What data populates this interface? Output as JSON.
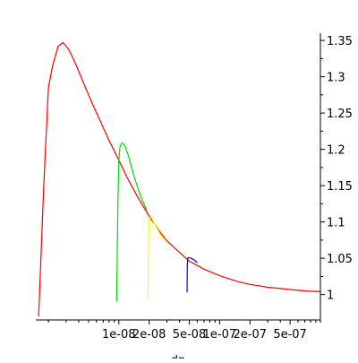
{
  "chart_data": {
    "type": "line",
    "title": "",
    "xlabel": "dp",
    "ylabel": "",
    "x_scale": "log",
    "xlim": [
      1.5e-09,
      1e-06
    ],
    "ylim": [
      0.965,
      1.36
    ],
    "grid": false,
    "legend": "none",
    "x_ticks": [
      {
        "value": 1e-08,
        "label": "1e-08"
      },
      {
        "value": 2e-08,
        "label": "2e-08"
      },
      {
        "value": 5e-08,
        "label": "5e-08"
      },
      {
        "value": 1e-07,
        "label": "1e-07"
      },
      {
        "value": 2e-07,
        "label": "2e-07"
      },
      {
        "value": 5e-07,
        "label": "5e-07"
      }
    ],
    "x_minor_ticks": [
      2e-09,
      3e-09,
      4e-09,
      5e-09,
      6e-09,
      7e-09,
      8e-09,
      9e-09,
      3e-08,
      4e-08,
      6e-08,
      7e-08,
      8e-08,
      9e-08,
      3e-07,
      4e-07,
      6e-07,
      7e-07,
      8e-07,
      9e-07,
      1e-06
    ],
    "y_ticks": [
      {
        "value": 1.0,
        "label": "1"
      },
      {
        "value": 1.05,
        "label": "1.05"
      },
      {
        "value": 1.1,
        "label": "1.1"
      },
      {
        "value": 1.15,
        "label": "1.15"
      },
      {
        "value": 1.2,
        "label": "1.2"
      },
      {
        "value": 1.25,
        "label": "1.25"
      },
      {
        "value": 1.3,
        "label": "1.3"
      },
      {
        "value": 1.35,
        "label": "1.35"
      }
    ],
    "series": [
      {
        "color": "#ff0000",
        "x": [
          1.6e-09,
          1.8e-09,
          2e-09,
          2.2e-09,
          2.5e-09,
          2.8e-09,
          3.2e-09,
          3.8e-09,
          4.5e-09,
          5.5e-09,
          6.5e-09,
          8e-09,
          1e-08,
          1.2e-08,
          1.5e-08,
          2e-08,
          2.5e-08,
          3e-08,
          4e-08,
          5e-08,
          7e-08,
          1e-07,
          1.5e-07,
          2e-07,
          3e-07,
          5e-07,
          7e-07,
          1e-06
        ],
        "y": [
          0.97,
          1.15,
          1.285,
          1.315,
          1.342,
          1.347,
          1.337,
          1.315,
          1.29,
          1.262,
          1.24,
          1.212,
          1.185,
          1.162,
          1.137,
          1.108,
          1.088,
          1.074,
          1.058,
          1.046,
          1.035,
          1.026,
          1.018,
          1.014,
          1.01,
          1.007,
          1.005,
          1.004
        ]
      },
      {
        "color": "#00dd00",
        "x": [
          9.5e-09,
          9.8e-09,
          1e-08,
          1.03e-08,
          1.08e-08,
          1.15e-08,
          1.25e-08,
          1.4e-08,
          1.6e-08,
          1.9e-08
        ],
        "y": [
          0.99,
          1.13,
          1.185,
          1.205,
          1.209,
          1.205,
          1.19,
          1.165,
          1.14,
          1.115
        ]
      },
      {
        "color": "#ffff00",
        "x": [
          1.95e-08,
          1.97e-08,
          2e-08,
          2.1e-08,
          2.3e-08,
          2.6e-08,
          3e-08
        ],
        "y": [
          0.995,
          1.07,
          1.105,
          1.107,
          1.095,
          1.082,
          1.072
        ]
      },
      {
        "color": "#0000ff",
        "x": [
          4.75e-08,
          4.78e-08,
          4.82e-08,
          5e-08,
          5.4e-08,
          6e-08
        ],
        "y": [
          1.003,
          1.04,
          1.05,
          1.051,
          1.049,
          1.044
        ]
      }
    ]
  }
}
